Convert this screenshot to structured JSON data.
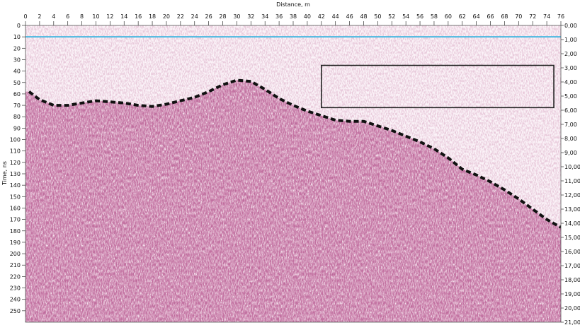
{
  "chart_data": {
    "type": "radargram",
    "xlabel": "Distance, m",
    "ylabel": "Time, ns",
    "xlim": [
      0,
      76
    ],
    "ylim_left": [
      0,
      260
    ],
    "ylim_right": [
      0,
      21
    ],
    "x_ticks": [
      "0",
      "2",
      "4",
      "6",
      "8",
      "10",
      "12",
      "14",
      "16",
      "18",
      "20",
      "22",
      "24",
      "26",
      "28",
      "30",
      "32",
      "34",
      "36",
      "38",
      "40",
      "42",
      "44",
      "46",
      "48",
      "50",
      "52",
      "54",
      "56",
      "58",
      "60",
      "62",
      "64",
      "66",
      "68",
      "70",
      "72",
      "74",
      "76"
    ],
    "y_ticks_left": [
      "0",
      "10",
      "20",
      "30",
      "40",
      "50",
      "60",
      "70",
      "80",
      "90",
      "100",
      "110",
      "120",
      "130",
      "140",
      "150",
      "160",
      "170",
      "180",
      "190",
      "200",
      "210",
      "220",
      "230",
      "240",
      "250"
    ],
    "y_ticks_right": [
      "0,00",
      "1,00",
      "2,00",
      "3,00",
      "4,00",
      "5,00",
      "6,00",
      "7,00",
      "8,00",
      "9,00",
      "10,00",
      "11,00",
      "12,00",
      "13,00",
      "14,00",
      "15,00",
      "16,00",
      "17,00",
      "18,00",
      "19,00",
      "20,00",
      "21,00"
    ],
    "surface_reflection_time_ns": 10,
    "interface_line": {
      "style": "dashed",
      "color": "#111111",
      "points": [
        [
          0.5,
          58
        ],
        [
          2,
          65
        ],
        [
          4,
          70
        ],
        [
          6,
          70
        ],
        [
          8,
          68
        ],
        [
          10,
          66
        ],
        [
          12,
          67
        ],
        [
          14,
          68
        ],
        [
          16,
          70
        ],
        [
          18,
          71
        ],
        [
          20,
          69
        ],
        [
          22,
          66
        ],
        [
          24,
          63
        ],
        [
          26,
          58
        ],
        [
          28,
          52
        ],
        [
          30,
          48
        ],
        [
          32,
          49
        ],
        [
          34,
          56
        ],
        [
          36,
          64
        ],
        [
          38,
          70
        ],
        [
          40,
          75
        ],
        [
          42,
          79
        ],
        [
          44,
          83
        ],
        [
          46,
          84
        ],
        [
          48,
          84
        ],
        [
          50,
          88
        ],
        [
          52,
          92
        ],
        [
          54,
          97
        ],
        [
          56,
          102
        ],
        [
          58,
          108
        ],
        [
          60,
          116
        ],
        [
          62,
          126
        ],
        [
          64,
          131
        ],
        [
          66,
          137
        ],
        [
          68,
          144
        ],
        [
          70,
          152
        ],
        [
          72,
          161
        ],
        [
          74,
          170
        ],
        [
          76,
          177
        ]
      ]
    },
    "highlight_box": {
      "x": [
        42,
        75
      ],
      "y": [
        35,
        72
      ]
    },
    "colors": {
      "background": "#fbf3f8",
      "signal_dark": "#7a1e4a",
      "signal_mid": "#b25a84",
      "signal_light": "#e8c9d9",
      "surface_line": "#49b8e0",
      "frame": "#222222"
    }
  }
}
